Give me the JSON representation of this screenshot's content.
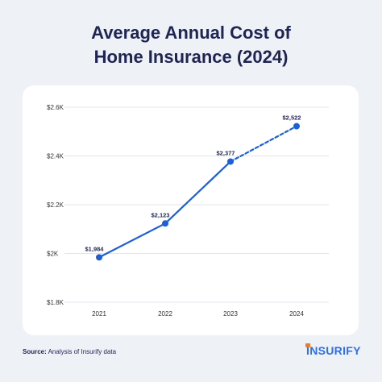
{
  "title_line1": "Average Annual Cost of",
  "title_line2": "Home Insurance (2024)",
  "source_label": "Source:",
  "source_text": "Analysis of Insurify data",
  "logo": {
    "first": "I",
    "rest": "NSURIFY",
    "accent_color": "#f07a2b",
    "brand_color": "#2f6ee6"
  },
  "colors": {
    "line": "#1c5fd6",
    "grid": "#e2e6ec",
    "text": "#1f2553",
    "tick": "#333333"
  },
  "chart_data": {
    "type": "line",
    "title": "Average Annual Cost of Home Insurance (2024)",
    "xlabel": "",
    "ylabel": "",
    "categories": [
      "2021",
      "2022",
      "2023",
      "2024"
    ],
    "values": [
      1984,
      2123,
      2377,
      2522
    ],
    "data_labels": [
      "$1,984",
      "$2,123",
      "$2,377",
      "$2,522"
    ],
    "projected_segment": {
      "from": "2023",
      "to": "2024",
      "style": "dashed"
    },
    "ylim": [
      1800,
      2600
    ],
    "yticks": [
      1800,
      2000,
      2200,
      2400,
      2600
    ],
    "ytick_labels": [
      "$1.8K",
      "$2K",
      "$2.2K",
      "$2.4K",
      "$2.6K"
    ],
    "grid": true,
    "legend": "none"
  }
}
